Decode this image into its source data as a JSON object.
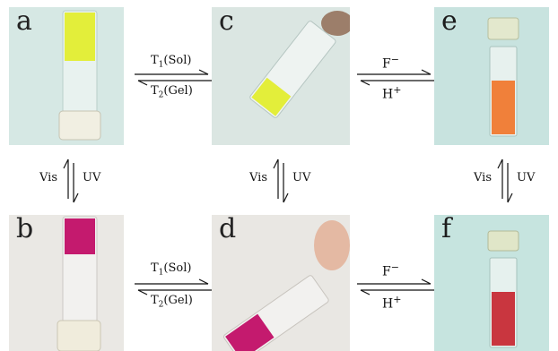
{
  "panels": {
    "a": {
      "letter": "a"
    },
    "b": {
      "letter": "b"
    },
    "c": {
      "letter": "c"
    },
    "d": {
      "letter": "d"
    },
    "e": {
      "letter": "e"
    },
    "f": {
      "letter": "f"
    }
  },
  "arrows": {
    "top_left": {
      "upper": "T",
      "upper_sub": "1",
      "upper_rest": "(Sol)",
      "lower": "T",
      "lower_sub": "2",
      "lower_rest": "(Gel)"
    },
    "bottom_left": {
      "upper": "T",
      "upper_sub": "1",
      "upper_rest": "(Sol)",
      "lower": "T",
      "lower_sub": "2",
      "lower_rest": "(Gel)"
    },
    "top_right": {
      "upper": "F",
      "upper_sup": "−",
      "lower": "H",
      "lower_sup": "+"
    },
    "bottom_right": {
      "upper": "F",
      "upper_sup": "−",
      "lower": "H",
      "lower_sup": "+"
    },
    "vert_1": {
      "left": "Vis",
      "right": "UV"
    },
    "vert_2": {
      "left": "Vis",
      "right": "UV"
    },
    "vert_3": {
      "left": "Vis",
      "right": "UV"
    }
  },
  "colors": {
    "yellow_gel": "#e3ee3a",
    "magenta_gel": "#c41a6e",
    "orange_solution": "#f0803a",
    "red_solution": "#c9363f",
    "background_light": "#cfe3df"
  }
}
